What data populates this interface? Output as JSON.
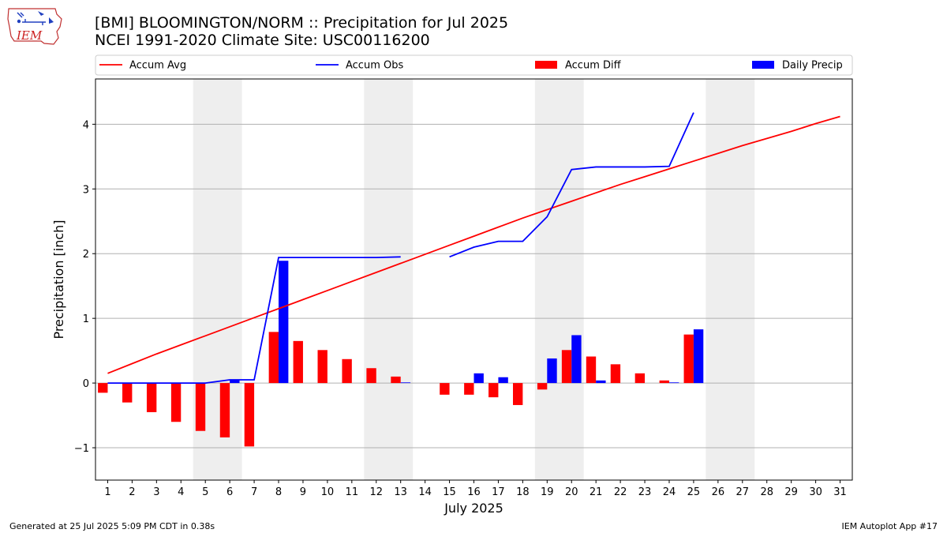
{
  "header": {
    "logo_text": "IEM",
    "title_line1": "[BMI] BLOOMINGTON/NORM :: Precipitation for Jul 2025",
    "title_line2": "NCEI 1991-2020 Climate Site: USC00116200"
  },
  "footer": {
    "generated": "Generated at 25 Jul 2025 5:09 PM CDT in 0.38s",
    "app": "IEM Autoplot App #17"
  },
  "colors": {
    "accum_avg": "#ff0000",
    "accum_obs": "#0000ff",
    "accum_diff": "#ff0000",
    "daily_precip": "#0000ff",
    "weekend_shade": "#eeeeee",
    "grid": "#b0b0b0"
  },
  "chart_data": {
    "type": "bar",
    "xlabel": "July 2025",
    "ylabel": "Precipitation [inch]",
    "ylim": [
      -1.5,
      4.7
    ],
    "yticks": [
      -1,
      0,
      1,
      2,
      3,
      4
    ],
    "ytick_labels": [
      "−1",
      "0",
      "1",
      "2",
      "3",
      "4"
    ],
    "xlim": [
      0.5,
      31.5
    ],
    "grid": "horizontal",
    "legend_position": "top",
    "legend": [
      "Accum Avg",
      "Accum Obs",
      "Accum Diff",
      "Daily Precip"
    ],
    "days": [
      1,
      2,
      3,
      4,
      5,
      6,
      7,
      8,
      9,
      10,
      11,
      12,
      13,
      14,
      15,
      16,
      17,
      18,
      19,
      20,
      21,
      22,
      23,
      24,
      25,
      26,
      27,
      28,
      29,
      30,
      31
    ],
    "weekend_shading": [
      [
        4.5,
        6.5
      ],
      [
        11.5,
        13.5
      ],
      [
        18.5,
        20.5
      ],
      [
        25.5,
        27.5
      ]
    ],
    "series": [
      {
        "name": "Accum Avg",
        "kind": "line",
        "x": [
          1,
          2,
          3,
          4,
          5,
          6,
          7,
          8,
          9,
          10,
          11,
          12,
          13,
          14,
          15,
          16,
          17,
          18,
          19,
          20,
          21,
          22,
          23,
          24,
          25,
          26,
          27,
          28,
          29,
          30,
          31
        ],
        "values": [
          0.15,
          0.3,
          0.45,
          0.59,
          0.73,
          0.87,
          1.01,
          1.15,
          1.29,
          1.43,
          1.57,
          1.71,
          1.85,
          1.99,
          2.13,
          2.27,
          2.41,
          2.55,
          2.68,
          2.81,
          2.94,
          3.07,
          3.19,
          3.31,
          3.43,
          3.55,
          3.67,
          3.78,
          3.89,
          4.01,
          4.12
        ]
      },
      {
        "name": "Accum Obs",
        "kind": "line",
        "x": [
          1,
          2,
          3,
          4,
          5,
          6,
          7,
          8,
          9,
          10,
          11,
          12,
          13,
          14,
          15,
          16,
          17,
          18,
          19,
          20,
          21,
          22,
          23,
          24,
          25
        ],
        "values": [
          0,
          0,
          0,
          0,
          0,
          0.05,
          0.05,
          1.94,
          1.94,
          1.94,
          1.94,
          1.94,
          1.95,
          null,
          1.95,
          2.1,
          2.19,
          2.19,
          2.57,
          3.3,
          3.34,
          3.34,
          3.34,
          3.35,
          4.18
        ]
      },
      {
        "name": "Accum Diff",
        "kind": "bar",
        "x": [
          1,
          2,
          3,
          4,
          5,
          6,
          7,
          8,
          9,
          10,
          11,
          12,
          13,
          15,
          16,
          17,
          18,
          19,
          20,
          21,
          22,
          23,
          24,
          25
        ],
        "values": [
          -0.15,
          -0.3,
          -0.45,
          -0.6,
          -0.74,
          -0.84,
          -0.98,
          0.79,
          0.65,
          0.51,
          0.37,
          0.23,
          0.1,
          -0.18,
          -0.18,
          -0.22,
          -0.34,
          -0.1,
          0.51,
          0.41,
          0.29,
          0.15,
          0.04,
          0.75
        ]
      },
      {
        "name": "Daily Precip",
        "kind": "bar",
        "x": [
          6,
          8,
          13,
          16,
          17,
          19,
          20,
          21,
          24,
          25
        ],
        "values": [
          0.05,
          1.89,
          0.01,
          0.15,
          0.09,
          0.38,
          0.74,
          0.04,
          0.01,
          0.83
        ]
      }
    ]
  }
}
